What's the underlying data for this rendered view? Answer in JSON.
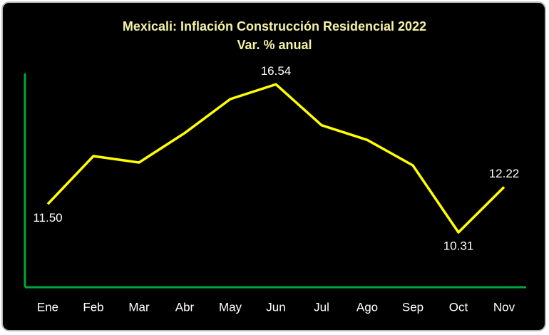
{
  "chart_data": {
    "type": "line",
    "title": "Mexicali: Inflación Construcción Residencial 2022",
    "subtitle": "Var. % anual",
    "categories": [
      "Ene",
      "Feb",
      "Mar",
      "Abr",
      "May",
      "Jun",
      "Jul",
      "Ago",
      "Sep",
      "Oct",
      "Nov"
    ],
    "series": [
      {
        "color": "#ffff00",
        "values": [
          11.5,
          13.52,
          13.25,
          14.49,
          15.92,
          16.54,
          14.82,
          14.2,
          13.13,
          10.31,
          12.22
        ],
        "value_labels": [
          "11.50",
          null,
          null,
          null,
          null,
          "16.54",
          null,
          null,
          null,
          "10.31",
          "12.22"
        ]
      }
    ],
    "ylim": [
      8,
      17
    ],
    "axis_color": "#00a63c"
  }
}
